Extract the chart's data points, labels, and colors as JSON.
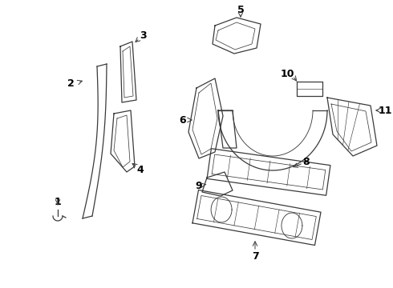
{
  "bg_color": "#ffffff",
  "line_color": "#3a3a3a",
  "label_color": "#000000",
  "figsize": [
    4.9,
    3.6
  ],
  "dpi": 100
}
